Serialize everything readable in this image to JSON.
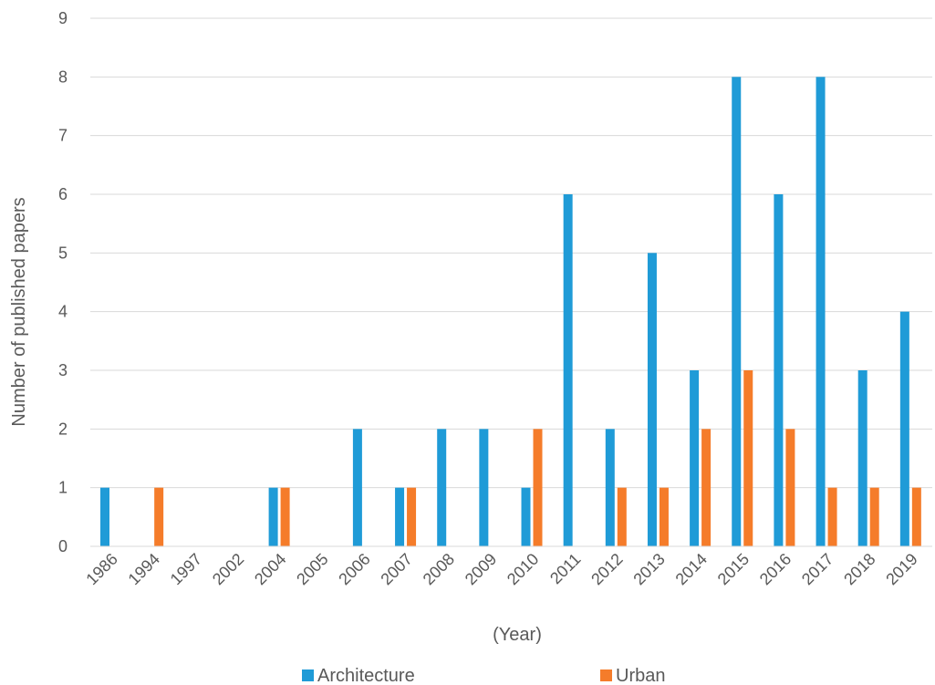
{
  "chart_data": {
    "type": "bar",
    "title": "",
    "xlabel": "(Year)",
    "ylabel": "Number of published papers",
    "ylim": [
      0,
      9
    ],
    "yticks": [
      0,
      1,
      2,
      3,
      4,
      5,
      6,
      7,
      8,
      9
    ],
    "grid": "horizontal",
    "legend_position": "bottom",
    "categories": [
      "1986",
      "1994",
      "1997",
      "2002",
      "2004",
      "2005",
      "2006",
      "2007",
      "2008",
      "2009",
      "2010",
      "2011",
      "2012",
      "2013",
      "2014",
      "2015",
      "2016",
      "2017",
      "2018",
      "2019"
    ],
    "series": [
      {
        "name": "Architecture",
        "color": "#1f9bd7",
        "values": [
          1,
          0,
          0,
          0,
          1,
          0,
          2,
          1,
          2,
          2,
          1,
          6,
          2,
          5,
          3,
          8,
          6,
          8,
          3,
          4
        ]
      },
      {
        "name": "Urban",
        "color": "#f57c2a",
        "values": [
          0,
          1,
          0,
          0,
          1,
          0,
          0,
          1,
          0,
          0,
          2,
          0,
          1,
          1,
          2,
          3,
          2,
          1,
          1,
          1
        ]
      }
    ]
  }
}
